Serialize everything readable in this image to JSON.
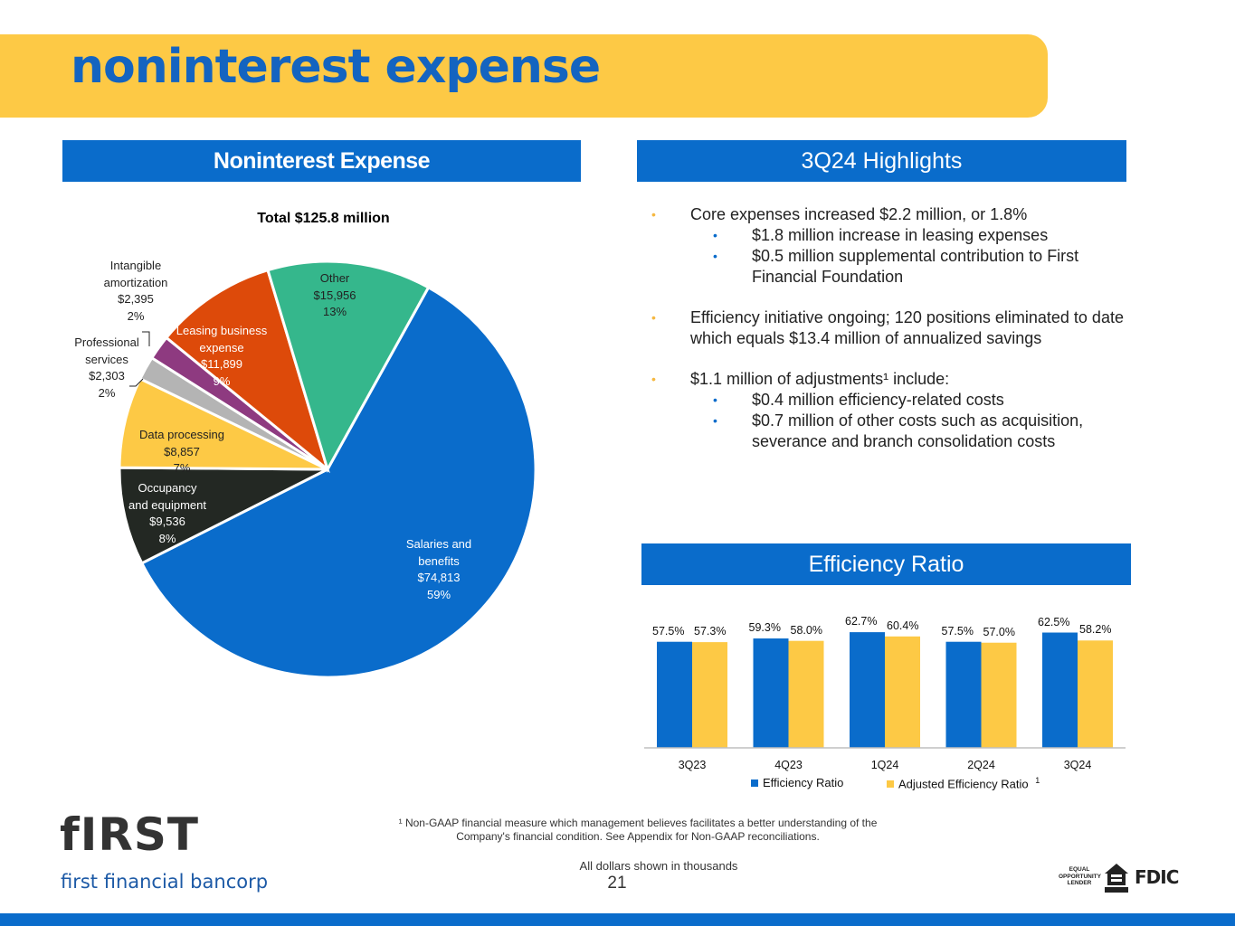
{
  "title": "noninterest expense",
  "sections": {
    "left": "Noninterest Expense",
    "right": "3Q24 Highlights",
    "efficiency": "Efficiency Ratio"
  },
  "pie": {
    "title": "Total $125.8 million",
    "slices": [
      {
        "name": "Salaries and benefits",
        "value": 74813,
        "value_label": "$74,813",
        "pct": "59%",
        "color": "#0A6CCB"
      },
      {
        "name": "Occupancy and equipment",
        "value": 9536,
        "value_label": "$9,536",
        "pct": "8%",
        "color": "#232823"
      },
      {
        "name": "Data processing",
        "value": 8857,
        "value_label": "$8,857",
        "pct": "7%",
        "color": "#FDC945"
      },
      {
        "name": "Professional services",
        "value": 2303,
        "value_label": "$2,303",
        "pct": "2%",
        "color": "#B4B4B4"
      },
      {
        "name": "Intangible amortization",
        "value": 2395,
        "value_label": "$2,395",
        "pct": "2%",
        "color": "#8E3A80"
      },
      {
        "name": "Leasing business expense",
        "value": 11899,
        "value_label": "$11,899",
        "pct": "9%",
        "color": "#DD4A0A"
      },
      {
        "name": "Other",
        "value": 15956,
        "value_label": "$15,956",
        "pct": "13%",
        "color": "#35B78C"
      }
    ]
  },
  "highlights": [
    {
      "text": "Core expenses increased $2.2 million, or 1.8%",
      "sub": [
        "$1.8 million increase in leasing expenses",
        "$0.5 million supplemental contribution to First Financial Foundation"
      ]
    },
    {
      "text": "Efficiency initiative ongoing; 120 positions eliminated to date which equals $13.4 million of annualized savings",
      "sub": []
    },
    {
      "text": "$1.1 million of adjustments¹ include:",
      "sub": [
        "$0.4 million efficiency-related costs",
        "$0.7 million of other costs such as acquisition, severance and branch consolidation costs"
      ]
    }
  ],
  "chart_data": {
    "type": "bar",
    "categories": [
      "3Q23",
      "4Q23",
      "1Q24",
      "2Q24",
      "3Q24"
    ],
    "series": [
      {
        "name": "Efficiency Ratio",
        "values": [
          57.5,
          59.3,
          62.7,
          57.5,
          62.5
        ],
        "labels": [
          "57.5%",
          "59.3%",
          "62.7%",
          "57.5%",
          "62.5%"
        ],
        "color": "#0A6CCB"
      },
      {
        "name": "Adjusted Efficiency Ratio",
        "values": [
          57.3,
          58.0,
          60.4,
          57.0,
          58.2
        ],
        "labels": [
          "57.3%",
          "58.0%",
          "60.4%",
          "57.0%",
          "58.2%"
        ],
        "color": "#FDC945"
      }
    ],
    "legend_note": "1",
    "legend_position": "bottom",
    "grid": false
  },
  "footnote": {
    "line1": "¹ Non-GAAP financial measure which management believes facilitates a better understanding of the",
    "line2": "Company's financial condition.  See Appendix for Non-GAAP reconciliations."
  },
  "dollars_note": "All dollars shown in thousands",
  "page_number": "21",
  "brand": {
    "logo_word": "fIRST",
    "name": "first financial bancorp"
  },
  "badges": {
    "equal_housing": "EQUAL OPPORTUNITY LENDER",
    "fdic": "FDIC"
  }
}
